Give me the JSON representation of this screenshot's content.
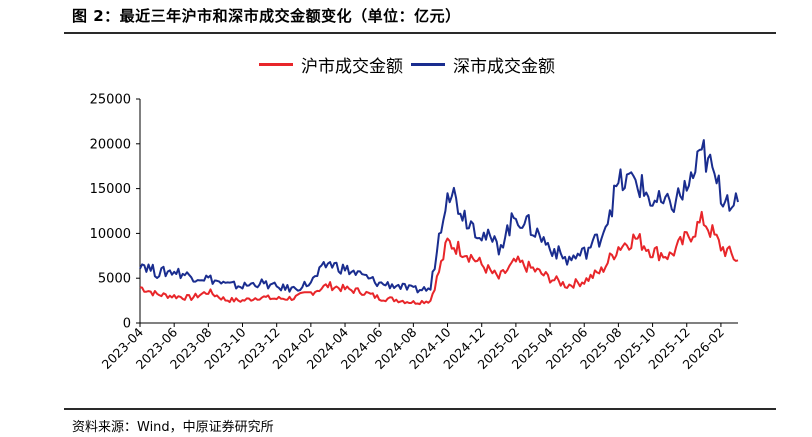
{
  "figure": {
    "title": "图 2：最近三年沪市和深市成交金额变化（单位：亿元）",
    "source": "资料来源：Wind，中原证券研究所"
  },
  "colors": {
    "sh": "#e8262a",
    "sz": "#1a2d8f"
  },
  "chart_data": {
    "type": "line",
    "title": "",
    "xlabel": "",
    "ylabel": "",
    "ylim": [
      0,
      25000
    ],
    "yticks": [
      "0",
      "5000",
      "10000",
      "15000",
      "20000",
      "25000"
    ],
    "legend_position": "top-center",
    "grid": false,
    "categories": [
      "2023-04",
      "2023-06",
      "2023-08",
      "2023-10",
      "2023-12",
      "2024-02",
      "2024-04",
      "2024-06",
      "2024-08",
      "2024-10",
      "2024-12",
      "2025-02",
      "2025-04",
      "2025-06",
      "2025-08",
      "2025-10",
      "2025-12",
      "2026-02"
    ],
    "x_note": "monthly sample points spanning 2023-04 to 2026-03, values read approximately from the chart",
    "x": [
      "2023-04",
      "2023-05",
      "2023-06",
      "2023-07",
      "2023-08",
      "2023-09",
      "2023-10",
      "2023-11",
      "2023-12",
      "2024-01",
      "2024-02",
      "2024-03",
      "2024-04",
      "2024-05",
      "2024-06",
      "2024-07",
      "2024-08",
      "2024-09",
      "2024-10",
      "2024-11",
      "2024-12",
      "2025-01",
      "2025-02",
      "2025-03",
      "2025-04",
      "2025-05",
      "2025-06",
      "2025-07",
      "2025-08",
      "2025-09",
      "2025-10",
      "2025-11",
      "2025-12",
      "2026-01",
      "2026-02",
      "2026-03"
    ],
    "series": [
      {
        "name": "沪市成交金额",
        "values": [
          4000,
          3200,
          3000,
          2800,
          3500,
          2600,
          2500,
          2900,
          2700,
          2800,
          3400,
          4200,
          3800,
          3500,
          2800,
          2600,
          2300,
          2500,
          9000,
          8000,
          6500,
          5000,
          6800,
          6000,
          5000,
          4200,
          4700,
          5800,
          8500,
          9500,
          8000,
          7500,
          9500,
          11500,
          8500,
          7000
        ]
      },
      {
        "name": "深市成交金额",
        "values": [
          6800,
          5600,
          5800,
          5200,
          5000,
          4300,
          4100,
          4500,
          4000,
          3800,
          4500,
          6700,
          6000,
          5300,
          4400,
          4200,
          3700,
          3800,
          15500,
          12000,
          10000,
          8500,
          12000,
          10500,
          8500,
          7000,
          7800,
          9800,
          15500,
          16000,
          13500,
          13000,
          15000,
          19000,
          14500,
          13500
        ]
      }
    ]
  }
}
